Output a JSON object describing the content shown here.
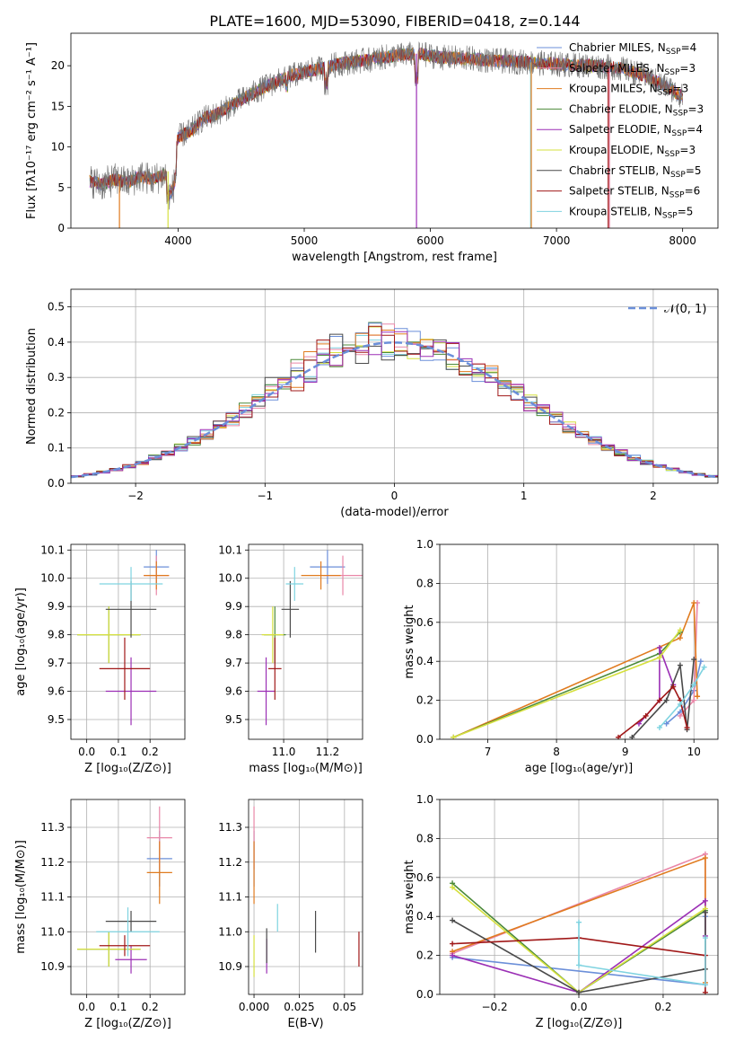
{
  "figure_title": "PLATE=1600, MJD=53090, FIBERID=0418, z=0.144",
  "legend_models": [
    {
      "base": "Chabrier MILES, N",
      "sub": "SSP",
      "n": "=4",
      "color": "#6b8fd9"
    },
    {
      "base": "Salpeter MILES, N",
      "sub": "SSP",
      "n": "=3",
      "color": "#e987a8"
    },
    {
      "base": "Kroupa MILES, N",
      "sub": "SSP",
      "n": "=3",
      "color": "#e07b1f"
    },
    {
      "base": "Chabrier ELODIE, N",
      "sub": "SSP",
      "n": "=3",
      "color": "#4c8a3a"
    },
    {
      "base": "Salpeter ELODIE, N",
      "sub": "SSP",
      "n": "=4",
      "color": "#9b2fb5"
    },
    {
      "base": "Kroupa ELODIE, N",
      "sub": "SSP",
      "n": "=3",
      "color": "#d6e03f"
    },
    {
      "base": "Chabrier STELIB, N",
      "sub": "SSP",
      "n": "=5",
      "color": "#4a4a4a"
    },
    {
      "base": "Salpeter STELIB, N",
      "sub": "SSP",
      "n": "=6",
      "color": "#a01818"
    },
    {
      "base": "Kroupa STELIB, N",
      "sub": "SSP",
      "n": "=5",
      "color": "#7fd3e0"
    }
  ],
  "gaussian_label": "𝒩(0, 1)",
  "chart_data": [
    {
      "id": "spectrum",
      "type": "line",
      "xlabel": "wavelength [Angstrom, rest frame]",
      "ylabel": "Flux [fλ10⁻¹⁷ erg cm⁻² s⁻¹ A⁻¹]",
      "xlim": [
        3150,
        8280
      ],
      "ylim": [
        0,
        24
      ],
      "xticks": [
        4000,
        5000,
        6000,
        7000,
        8000
      ],
      "yticks": [
        0,
        5,
        10,
        15,
        20
      ],
      "grid": false,
      "legend": "upper right",
      "observed_continuum": {
        "x": [
          3300,
          3400,
          3500,
          3600,
          3700,
          3800,
          3900,
          3960,
          4000,
          4100,
          4200,
          4300,
          4500,
          4700,
          4900,
          5100,
          5300,
          5500,
          5700,
          5900,
          6100,
          6300,
          6500,
          6700,
          6900,
          7100,
          7300,
          7500,
          7700,
          7900,
          8000
        ],
        "y": [
          5.8,
          5.4,
          6.0,
          5.6,
          6.4,
          6.0,
          6.6,
          7.8,
          11.2,
          12.0,
          13.5,
          14.0,
          15.8,
          17.5,
          18.8,
          19.6,
          20.3,
          20.7,
          21.2,
          21.5,
          21.0,
          20.9,
          20.6,
          20.5,
          20.3,
          20.1,
          20.0,
          19.7,
          18.8,
          17.2,
          16.2
        ]
      }
    },
    {
      "id": "residuals",
      "type": "histogram",
      "xlabel": "(data-model)/error",
      "ylabel": "Normed distribution",
      "xlim": [
        -2.5,
        2.5
      ],
      "ylim": [
        0,
        0.55
      ],
      "xticks": [
        -2,
        -1,
        0,
        1,
        2
      ],
      "yticks": [
        0.0,
        0.1,
        0.2,
        0.3,
        0.4,
        0.5
      ],
      "grid": true,
      "legend": "upper right",
      "bin_width": 0.1,
      "bin_start": -2.5,
      "reference_curve": "standard normal N(0,1)"
    },
    {
      "id": "Z_vs_age",
      "type": "errorbar",
      "xlabel": "Z [log₁₀(Z/Z⊙)]",
      "ylabel": "age  [log₁₀(age/yr)]",
      "xlim": [
        -0.05,
        0.31
      ],
      "ylim": [
        9.43,
        10.12
      ],
      "xticks": [
        0.0,
        0.1,
        0.2
      ],
      "yticks": [
        9.5,
        9.6,
        9.7,
        9.8,
        9.9,
        10.0,
        10.1
      ],
      "grid": true,
      "points": [
        {
          "model": 0,
          "x": 0.22,
          "xerr": 0.04,
          "y": 10.04,
          "yerr": 0.06
        },
        {
          "model": 1,
          "x": 0.22,
          "xerr": 0.04,
          "y": 10.01,
          "yerr": 0.07
        },
        {
          "model": 2,
          "x": 0.22,
          "xerr": 0.04,
          "y": 10.01,
          "yerr": 0.05
        },
        {
          "model": 3,
          "x": 0.07,
          "xerr": 0.1,
          "y": 9.8,
          "yerr": 0.1
        },
        {
          "model": 4,
          "x": 0.14,
          "xerr": 0.08,
          "y": 9.6,
          "yerr": 0.12
        },
        {
          "model": 5,
          "x": 0.07,
          "xerr": 0.1,
          "y": 9.8,
          "yerr": 0.1
        },
        {
          "model": 6,
          "x": 0.14,
          "xerr": 0.08,
          "y": 9.89,
          "yerr": 0.1
        },
        {
          "model": 7,
          "x": 0.12,
          "xerr": 0.08,
          "y": 9.68,
          "yerr": 0.11
        },
        {
          "model": 8,
          "x": 0.14,
          "xerr": 0.1,
          "y": 9.98,
          "yerr": 0.06
        }
      ]
    },
    {
      "id": "mass_vs_age",
      "type": "errorbar",
      "xlabel": "mass [log₁₀(M/M⊙)]",
      "ylabel": "",
      "xlim": [
        10.84,
        11.36
      ],
      "ylim": [
        9.43,
        10.12
      ],
      "xticks": [
        11.0,
        11.2
      ],
      "yticks": [
        9.5,
        9.6,
        9.7,
        9.8,
        9.9,
        10.0,
        10.1
      ],
      "grid": true,
      "points": [
        {
          "model": 0,
          "x": 11.2,
          "xerr": 0.08,
          "y": 10.04,
          "yerr": 0.06
        },
        {
          "model": 1,
          "x": 11.27,
          "xerr": 0.09,
          "y": 10.01,
          "yerr": 0.07
        },
        {
          "model": 2,
          "x": 11.17,
          "xerr": 0.09,
          "y": 10.01,
          "yerr": 0.05
        },
        {
          "model": 3,
          "x": 10.96,
          "xerr": 0.05,
          "y": 9.8,
          "yerr": 0.1
        },
        {
          "model": 4,
          "x": 10.92,
          "xerr": 0.04,
          "y": 9.6,
          "yerr": 0.12
        },
        {
          "model": 5,
          "x": 10.95,
          "xerr": 0.05,
          "y": 9.8,
          "yerr": 0.1
        },
        {
          "model": 6,
          "x": 11.03,
          "xerr": 0.04,
          "y": 9.89,
          "yerr": 0.1
        },
        {
          "model": 7,
          "x": 10.96,
          "xerr": 0.03,
          "y": 9.68,
          "yerr": 0.11
        },
        {
          "model": 8,
          "x": 11.05,
          "xerr": 0.04,
          "y": 9.98,
          "yerr": 0.06
        }
      ]
    },
    {
      "id": "age_vs_weight",
      "type": "line",
      "xlabel": "age  [log₁₀(age/yr)]",
      "ylabel": "mass weight",
      "xlim": [
        6.3,
        10.35
      ],
      "ylim": [
        0,
        1
      ],
      "xticks": [
        7,
        8,
        9,
        10
      ],
      "yticks": [
        0.0,
        0.2,
        0.4,
        0.6,
        0.8,
        1.0
      ],
      "grid": true,
      "series": [
        {
          "model": 0,
          "x": [
            9.6,
            9.8,
            10.0,
            10.1
          ],
          "y": [
            0.08,
            0.14,
            0.25,
            0.4
          ]
        },
        {
          "model": 1,
          "x": [
            9.8,
            10.0,
            10.05
          ],
          "y": [
            0.12,
            0.2,
            0.7
          ]
        },
        {
          "model": 2,
          "x": [
            6.5,
            9.8,
            10.0,
            10.05
          ],
          "y": [
            0.01,
            0.52,
            0.7,
            0.22
          ]
        },
        {
          "model": 3,
          "x": [
            6.5,
            9.5,
            9.8
          ],
          "y": [
            0.01,
            0.44,
            0.55
          ]
        },
        {
          "model": 4,
          "x": [
            9.2,
            9.5,
            9.5,
            9.7
          ],
          "y": [
            0.08,
            0.2,
            0.47,
            0.28
          ]
        },
        {
          "model": 5,
          "x": [
            6.5,
            9.5,
            9.8
          ],
          "y": [
            0.01,
            0.42,
            0.56
          ]
        },
        {
          "model": 6,
          "x": [
            9.1,
            9.6,
            9.8,
            9.9,
            10.0
          ],
          "y": [
            0.01,
            0.2,
            0.38,
            0.05,
            0.41
          ]
        },
        {
          "model": 7,
          "x": [
            8.9,
            9.3,
            9.5,
            9.7,
            9.8,
            9.9
          ],
          "y": [
            0.01,
            0.12,
            0.2,
            0.27,
            0.2,
            0.06
          ]
        },
        {
          "model": 8,
          "x": [
            9.5,
            9.8,
            10.0,
            10.15
          ],
          "y": [
            0.06,
            0.18,
            0.28,
            0.37
          ]
        }
      ]
    },
    {
      "id": "Z_vs_mass",
      "type": "errorbar",
      "xlabel": "Z [log₁₀(Z/Z⊙)]",
      "ylabel": "mass [log₁₀(M/M⊙)]",
      "xlim": [
        -0.05,
        0.31
      ],
      "ylim": [
        10.82,
        11.38
      ],
      "xticks": [
        0.0,
        0.1,
        0.2
      ],
      "yticks": [
        10.9,
        11.0,
        11.1,
        11.2,
        11.3
      ],
      "grid": true,
      "points": [
        {
          "model": 0,
          "x": 0.23,
          "xerr": 0.04,
          "y": 11.21,
          "yerr": 0.08
        },
        {
          "model": 1,
          "x": 0.23,
          "xerr": 0.04,
          "y": 11.27,
          "yerr": 0.09
        },
        {
          "model": 2,
          "x": 0.23,
          "xerr": 0.04,
          "y": 11.17,
          "yerr": 0.09
        },
        {
          "model": 3,
          "x": 0.07,
          "xerr": 0.1,
          "y": 10.95,
          "yerr": 0.05
        },
        {
          "model": 4,
          "x": 0.14,
          "xerr": 0.05,
          "y": 10.92,
          "yerr": 0.04
        },
        {
          "model": 5,
          "x": 0.07,
          "xerr": 0.1,
          "y": 10.95,
          "yerr": 0.05
        },
        {
          "model": 6,
          "x": 0.14,
          "xerr": 0.08,
          "y": 11.03,
          "yerr": 0.03
        },
        {
          "model": 7,
          "x": 0.12,
          "xerr": 0.08,
          "y": 10.96,
          "yerr": 0.03
        },
        {
          "model": 8,
          "x": 0.13,
          "xerr": 0.1,
          "y": 11.0,
          "yerr": 0.07
        }
      ]
    },
    {
      "id": "ebv_vs_mass",
      "type": "errorbar",
      "xlabel": "E(B-V)",
      "ylabel": "",
      "xlim": [
        -0.003,
        0.06
      ],
      "ylim": [
        10.82,
        11.38
      ],
      "xticks": [
        0.0,
        0.025,
        0.05
      ],
      "yticks": [
        10.9,
        11.0,
        11.1,
        11.2,
        11.3
      ],
      "grid": true,
      "points": [
        {
          "model": 0,
          "x": 0.0,
          "xerr": 0,
          "y": 11.21,
          "yerr": 0.08
        },
        {
          "model": 1,
          "x": 0.0,
          "xerr": 0,
          "y": 11.27,
          "yerr": 0.09
        },
        {
          "model": 2,
          "x": 0.0,
          "xerr": 0,
          "y": 11.17,
          "yerr": 0.09
        },
        {
          "model": 5,
          "x": 0.0,
          "xerr": 0,
          "y": 10.93,
          "yerr": 0.06
        },
        {
          "model": 4,
          "x": 0.007,
          "xerr": 0,
          "y": 10.93,
          "yerr": 0.05
        },
        {
          "model": 6,
          "x": 0.007,
          "xerr": 0,
          "y": 10.96,
          "yerr": 0.05
        },
        {
          "model": 8,
          "x": 0.013,
          "xerr": 0,
          "y": 11.04,
          "yerr": 0.04
        },
        {
          "model": 6,
          "x": 0.034,
          "xerr": 0,
          "y": 11.0,
          "yerr": 0.06
        },
        {
          "model": 7,
          "x": 0.058,
          "xerr": 0,
          "y": 10.95,
          "yerr": 0.05
        }
      ]
    },
    {
      "id": "Z_vs_weight",
      "type": "line",
      "xlabel": "Z [log₁₀(Z/Z⊙)]",
      "ylabel": "mass weight",
      "xlim": [
        -0.33,
        0.33
      ],
      "ylim": [
        0,
        1
      ],
      "xticks": [
        -0.2,
        0.0,
        0.2
      ],
      "yticks": [
        0.0,
        0.2,
        0.4,
        0.6,
        0.8,
        1.0
      ],
      "grid": true,
      "series": [
        {
          "model": 0,
          "x": [
            -0.3,
            0.3,
            0.3
          ],
          "y": [
            0.19,
            0.05,
            0.4
          ]
        },
        {
          "model": 1,
          "x": [
            -0.3,
            0.3,
            0.3
          ],
          "y": [
            0.21,
            0.72,
            0.05
          ]
        },
        {
          "model": 2,
          "x": [
            -0.3,
            0.3,
            0.3
          ],
          "y": [
            0.22,
            0.7,
            0.06
          ]
        },
        {
          "model": 3,
          "x": [
            -0.3,
            0.0,
            0.3
          ],
          "y": [
            0.57,
            0.01,
            0.43
          ]
        },
        {
          "model": 4,
          "x": [
            -0.3,
            0.0,
            0.3,
            0.3
          ],
          "y": [
            0.2,
            0.01,
            0.48,
            0.3
          ]
        },
        {
          "model": 5,
          "x": [
            -0.3,
            0.0,
            0.3
          ],
          "y": [
            0.55,
            0.01,
            0.44
          ]
        },
        {
          "model": 6,
          "x": [
            -0.3,
            0.0,
            0.3,
            0.3
          ],
          "y": [
            0.38,
            0.01,
            0.13,
            0.42
          ]
        },
        {
          "model": 7,
          "x": [
            -0.3,
            0.0,
            0.3,
            0.3
          ],
          "y": [
            0.26,
            0.29,
            0.2,
            0.01
          ]
        },
        {
          "model": 8,
          "x": [
            0.0,
            0.0,
            0.3,
            0.3
          ],
          "y": [
            0.37,
            0.15,
            0.05,
            0.29
          ]
        }
      ]
    }
  ]
}
